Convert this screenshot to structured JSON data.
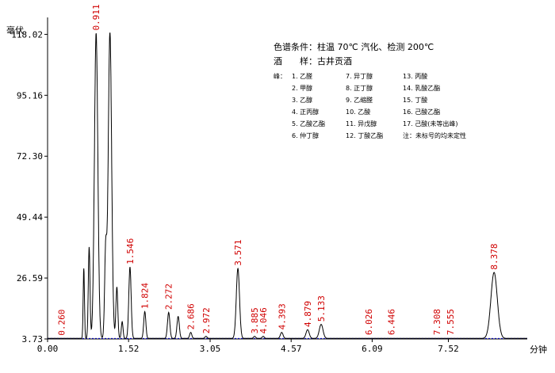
{
  "chart_data": {
    "type": "line",
    "ylabel": "毫伏",
    "xlabel": "分钟",
    "yticks": [
      "3.73",
      "26.59",
      "49.44",
      "72.30",
      "95.16",
      "118.02"
    ],
    "xticks": [
      "0.00",
      "1.52",
      "3.05",
      "4.57",
      "6.09",
      "7.52"
    ],
    "xlim": [
      0,
      9.0
    ],
    "ylim": [
      3.73,
      122
    ],
    "conditions": [
      "色谱条件：柱温 70℃ 汽化、检测 200℃",
      "酒　　样：古井贡酒"
    ],
    "legend": {
      "prefix": "峰：",
      "col1": [
        "1. 乙醛",
        "2. 甲醇",
        "3. 乙醇",
        "4. 正丙醇",
        "5. 乙酸乙酯",
        "6. 仲丁醇"
      ],
      "col2": [
        "7. 异丁醇",
        "8. 正丁醇",
        "9. 乙缩醛",
        "10. 乙酸",
        "11. 异戊醇",
        "12. 丁酸乙酯"
      ],
      "col3": [
        "13. 丙酸",
        "14. 乳酸乙酯",
        "15. 丁酸",
        "16. 己酸乙酯",
        "17. 己酸(未等出峰)",
        "注：未标号的均未定性"
      ]
    },
    "peak_labels": [
      {
        "label": "0.260",
        "rt": 0.26,
        "height": 3.8
      },
      {
        "label": "0.911",
        "rt": 0.911,
        "height": 118.3
      },
      {
        "label": "1.546",
        "rt": 1.546,
        "height": 30.5
      },
      {
        "label": "1.824",
        "rt": 1.824,
        "height": 13.8
      },
      {
        "label": "2.272",
        "rt": 2.272,
        "height": 13.5
      },
      {
        "label": "2.686",
        "rt": 2.686,
        "height": 6.0
      },
      {
        "label": "2.972",
        "rt": 2.972,
        "height": 4.5
      },
      {
        "label": "3.571",
        "rt": 3.571,
        "height": 30.0
      },
      {
        "label": "3.885",
        "rt": 3.885,
        "height": 4.5
      },
      {
        "label": "4.046",
        "rt": 4.046,
        "height": 4.5
      },
      {
        "label": "4.393",
        "rt": 4.393,
        "height": 6.0
      },
      {
        "label": "4.879",
        "rt": 4.879,
        "height": 7.0
      },
      {
        "label": "5.133",
        "rt": 5.133,
        "height": 9.0
      },
      {
        "label": "6.026",
        "rt": 6.026,
        "height": 4.0
      },
      {
        "label": "6.446",
        "rt": 6.446,
        "height": 4.0
      },
      {
        "label": "7.308",
        "rt": 7.308,
        "height": 4.0
      },
      {
        "label": "7.555",
        "rt": 7.555,
        "height": 4.0
      },
      {
        "label": "8.378",
        "rt": 8.378,
        "height": 28.5
      }
    ],
    "series": [
      {
        "peaks": [
          {
            "rt": 0.68,
            "height": 30.0,
            "width": 0.012
          },
          {
            "rt": 0.78,
            "height": 38.0,
            "width": 0.016
          },
          {
            "rt": 0.911,
            "height": 118.3,
            "width": 0.032
          },
          {
            "rt": 1.09,
            "height": 36.0,
            "width": 0.02
          },
          {
            "rt": 1.17,
            "height": 118.5,
            "width": 0.032
          },
          {
            "rt": 1.3,
            "height": 23.0,
            "width": 0.018
          },
          {
            "rt": 1.4,
            "height": 10.0,
            "width": 0.016
          },
          {
            "rt": 1.546,
            "height": 30.5,
            "width": 0.022
          },
          {
            "rt": 1.824,
            "height": 13.8,
            "width": 0.02
          },
          {
            "rt": 2.272,
            "height": 13.5,
            "width": 0.022
          },
          {
            "rt": 2.45,
            "height": 12.0,
            "width": 0.022
          },
          {
            "rt": 2.686,
            "height": 6.0,
            "width": 0.02
          },
          {
            "rt": 2.972,
            "height": 4.5,
            "width": 0.02
          },
          {
            "rt": 3.571,
            "height": 30.0,
            "width": 0.03
          },
          {
            "rt": 3.885,
            "height": 4.5,
            "width": 0.02
          },
          {
            "rt": 4.046,
            "height": 4.5,
            "width": 0.02
          },
          {
            "rt": 4.393,
            "height": 6.0,
            "width": 0.025
          },
          {
            "rt": 4.879,
            "height": 7.0,
            "width": 0.03
          },
          {
            "rt": 5.133,
            "height": 9.0,
            "width": 0.035
          },
          {
            "rt": 8.378,
            "height": 28.5,
            "width": 0.06
          }
        ]
      }
    ]
  }
}
